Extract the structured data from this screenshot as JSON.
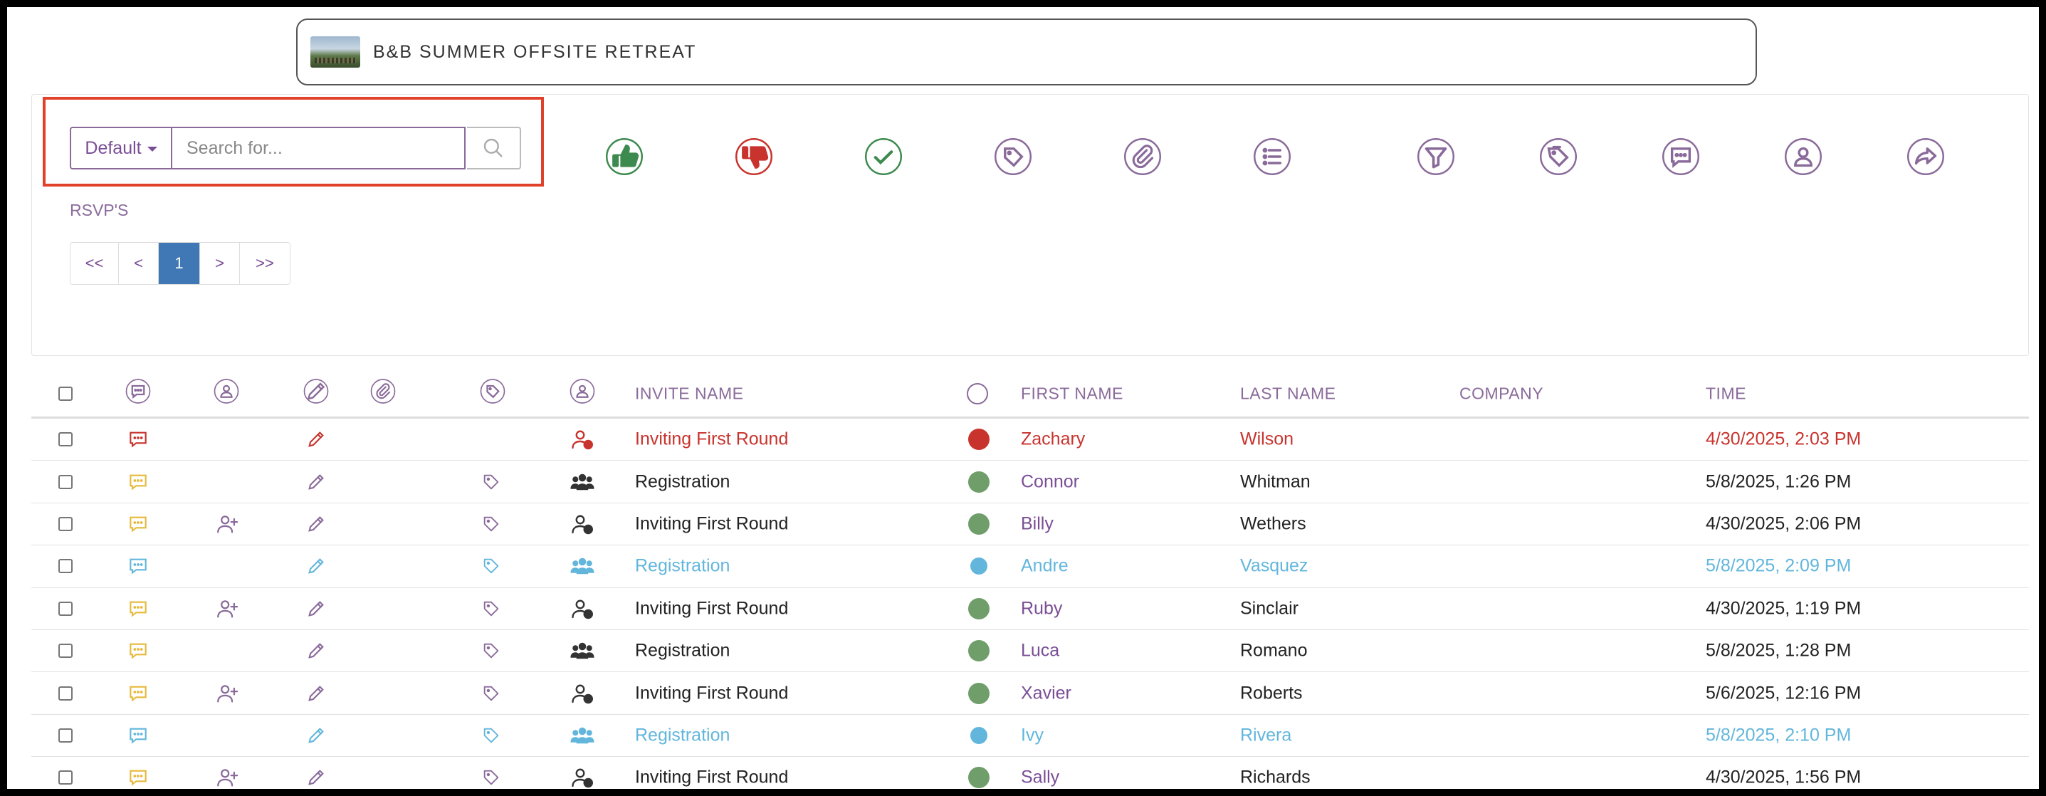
{
  "event": {
    "title": "B&B SUMMER OFFSITE RETREAT"
  },
  "search": {
    "mode_label": "Default",
    "placeholder": "Search for..."
  },
  "toolbar_actions": [
    {
      "name": "thumbs-up-icon",
      "color": "#3d8a4e"
    },
    {
      "name": "thumbs-down-icon",
      "color": "#c8332d"
    },
    {
      "name": "check-icon",
      "color": "#3d8a4e"
    },
    {
      "name": "tag-icon",
      "color": "#8a6a9a"
    },
    {
      "name": "paperclip-icon",
      "color": "#8a6a9a"
    },
    {
      "name": "list-icon",
      "color": "#8a6a9a"
    },
    {
      "name": "filter-icon",
      "color": "#8a6a9a"
    },
    {
      "name": "tags-icon",
      "color": "#8a6a9a"
    },
    {
      "name": "comment-icon",
      "color": "#8a6a9a"
    },
    {
      "name": "user-icon",
      "color": "#8a6a9a"
    },
    {
      "name": "share-icon",
      "color": "#8a6a9a"
    }
  ],
  "section_label": "RSVP'S",
  "pagination": {
    "first": "<<",
    "prev": "<",
    "current": "1",
    "next": ">",
    "last": ">>"
  },
  "table": {
    "columns": {
      "invite_name": "INVITE NAME",
      "first_name": "FIRST NAME",
      "last_name": "LAST NAME",
      "company": "COMPANY",
      "time": "TIME"
    },
    "rows": [
      {
        "invite": "Inviting First Round",
        "first": "Zachary",
        "last": "Wilson",
        "company": "",
        "time": "4/30/2025, 2:03 PM",
        "status": "declined",
        "add_user": false,
        "tag": false
      },
      {
        "invite": "Registration",
        "first": "Connor",
        "last": "Whitman",
        "company": "",
        "time": "5/8/2025, 1:26 PM",
        "status": "accepted",
        "add_user": false,
        "tag": true
      },
      {
        "invite": "Inviting First Round",
        "first": "Billy",
        "last": "Wethers",
        "company": "",
        "time": "4/30/2025, 2:06 PM",
        "status": "accepted",
        "add_user": true,
        "tag": true
      },
      {
        "invite": "Registration",
        "first": "Andre",
        "last": "Vasquez",
        "company": "",
        "time": "5/8/2025, 2:09 PM",
        "status": "pending",
        "add_user": false,
        "tag": true
      },
      {
        "invite": "Inviting First Round",
        "first": "Ruby",
        "last": "Sinclair",
        "company": "",
        "time": "4/30/2025, 1:19 PM",
        "status": "accepted",
        "add_user": true,
        "tag": true
      },
      {
        "invite": "Registration",
        "first": "Luca",
        "last": "Romano",
        "company": "",
        "time": "5/8/2025, 1:28 PM",
        "status": "accepted",
        "add_user": false,
        "tag": true
      },
      {
        "invite": "Inviting First Round",
        "first": "Xavier",
        "last": "Roberts",
        "company": "",
        "time": "5/6/2025, 12:16 PM",
        "status": "accepted",
        "add_user": true,
        "tag": true
      },
      {
        "invite": "Registration",
        "first": "Ivy",
        "last": "Rivera",
        "company": "",
        "time": "5/8/2025, 2:10 PM",
        "status": "pending",
        "add_user": false,
        "tag": true
      },
      {
        "invite": "Inviting First Round",
        "first": "Sally",
        "last": "Richards",
        "company": "",
        "time": "4/30/2025, 1:56 PM",
        "status": "accepted",
        "add_user": true,
        "tag": true
      }
    ]
  },
  "colors": {
    "accent_purple": "#8a6a9a",
    "name_purple": "#7a4e96",
    "declined_red": "#c8332d",
    "accepted_green": "#6f9e6a",
    "pending_blue": "#62b6dc",
    "comment_yellow": "#e6b93a",
    "text_dark": "#222222",
    "active_page": "#3f78b5"
  }
}
